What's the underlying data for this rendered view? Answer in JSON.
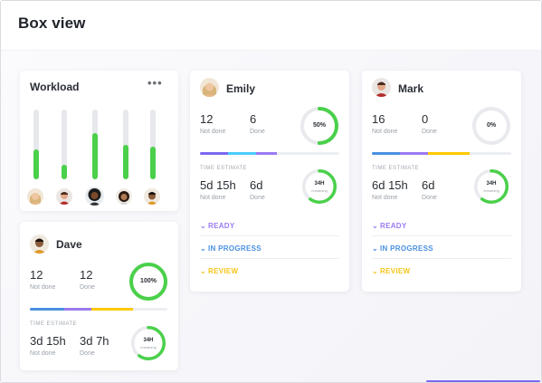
{
  "page": {
    "title": "Box view"
  },
  "workload": {
    "title": "Workload",
    "menu_icon": "more-dots-icon",
    "bars": [
      {
        "level": 0.43
      },
      {
        "level": 0.21
      },
      {
        "level": 0.66
      },
      {
        "level": 0.49
      },
      {
        "level": 0.47
      }
    ]
  },
  "people": [
    {
      "name": "Emily",
      "not_done": "12",
      "not_done_label": "Not done",
      "done": "6",
      "done_label": "Done",
      "percent": "50%",
      "percent_value": 0.5,
      "progress_segments": [
        {
          "color": "#7b68ee",
          "fraction": 0.2
        },
        {
          "color": "#49ccf9",
          "fraction": 0.2
        },
        {
          "color": "#9b7bf0",
          "fraction": 0.15
        },
        {
          "color": "#ffc800",
          "fraction": 0.0
        }
      ],
      "time_estimate_label": "TIME ESTIMATE",
      "est_not_done": "5d 15h",
      "est_done": "6d",
      "ring_hours": "34H",
      "ring_sub": "remaining",
      "ring_value": 0.6,
      "statuses": [
        {
          "label": "READY",
          "color": "#9b7bf0"
        },
        {
          "label": "IN PROGRESS",
          "color": "#4a90e2"
        },
        {
          "label": "REVIEW",
          "color": "#f5c518"
        }
      ]
    },
    {
      "name": "Mark",
      "not_done": "16",
      "not_done_label": "Not done",
      "done": "0",
      "done_label": "Done",
      "percent": "0%",
      "percent_value": 0.0,
      "progress_segments": [
        {
          "color": "#4a90e2",
          "fraction": 0.2
        },
        {
          "color": "#9b7bf0",
          "fraction": 0.2
        },
        {
          "color": "#ffc800",
          "fraction": 0.3
        }
      ],
      "time_estimate_label": "TIME ESTIMATE",
      "est_not_done": "6d 15h",
      "est_done": "6d",
      "ring_hours": "34H",
      "ring_sub": "remaining",
      "ring_value": 0.6,
      "statuses": [
        {
          "label": "READY",
          "color": "#9b7bf0"
        },
        {
          "label": "IN PROGRESS",
          "color": "#4a90e2"
        },
        {
          "label": "REVIEW",
          "color": "#f5c518"
        }
      ]
    },
    {
      "name": "Dave",
      "not_done": "12",
      "not_done_label": "Not done",
      "done": "12",
      "done_label": "Done",
      "percent": "100%",
      "percent_value": 1.0,
      "progress_segments": [
        {
          "color": "#4a90e2",
          "fraction": 0.25
        },
        {
          "color": "#9b7bf0",
          "fraction": 0.2
        },
        {
          "color": "#ffc800",
          "fraction": 0.3
        }
      ],
      "time_estimate_label": "TIME ESTIMATE",
      "est_not_done": "3d 15h",
      "est_done": "3d 7h",
      "ring_hours": "34H",
      "ring_sub": "remaining",
      "ring_value": 0.6
    }
  ]
}
